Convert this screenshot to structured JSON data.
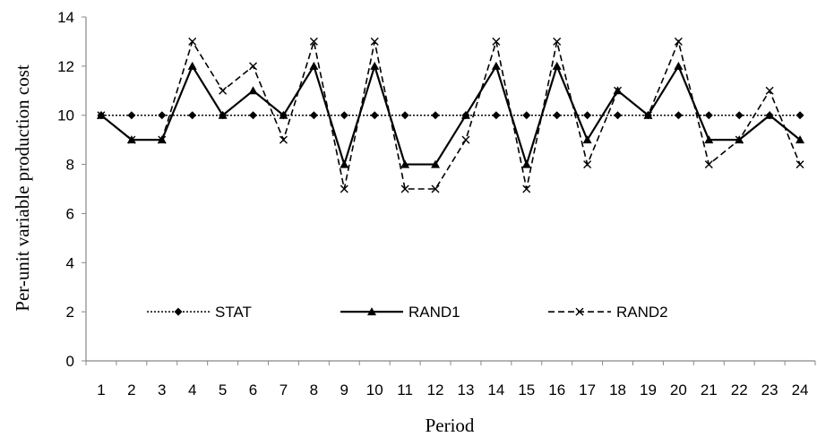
{
  "chart_data": {
    "type": "line",
    "xlabel": "Period",
    "ylabel": "Per-unit variable production cost",
    "ylim": [
      0,
      14
    ],
    "yticks": [
      0,
      2,
      4,
      6,
      8,
      10,
      12,
      14
    ],
    "categories": [
      "1",
      "2",
      "3",
      "4",
      "5",
      "6",
      "7",
      "8",
      "9",
      "10",
      "11",
      "12",
      "13",
      "14",
      "15",
      "16",
      "17",
      "18",
      "19",
      "20",
      "21",
      "22",
      "23",
      "24"
    ],
    "grid": false,
    "legend_position": "inside-bottom",
    "series": [
      {
        "name": "STAT",
        "style": "dotted",
        "marker": "diamond",
        "color": "#000000",
        "values": [
          10,
          10,
          10,
          10,
          10,
          10,
          10,
          10,
          10,
          10,
          10,
          10,
          10,
          10,
          10,
          10,
          10,
          10,
          10,
          10,
          10,
          10,
          10,
          10
        ]
      },
      {
        "name": "RAND1",
        "style": "solid",
        "marker": "triangle",
        "color": "#000000",
        "values": [
          10,
          9,
          9,
          12,
          10,
          11,
          10,
          12,
          8,
          12,
          8,
          8,
          10,
          12,
          8,
          12,
          9,
          11,
          10,
          12,
          9,
          9,
          10,
          9
        ]
      },
      {
        "name": "RAND2",
        "style": "dashed",
        "marker": "x",
        "color": "#000000",
        "values": [
          10,
          9,
          9,
          13,
          11,
          12,
          9,
          13,
          7,
          13,
          7,
          7,
          9,
          13,
          7,
          13,
          8,
          11,
          10,
          13,
          8,
          9,
          11,
          8
        ]
      }
    ]
  }
}
